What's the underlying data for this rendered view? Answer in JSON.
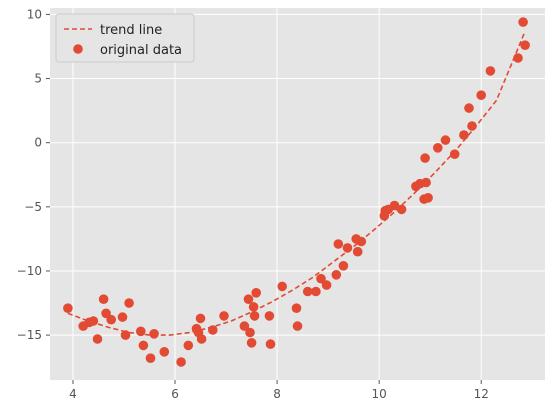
{
  "chart_data": {
    "type": "scatter",
    "title": "",
    "xlabel": "",
    "ylabel": "",
    "xlim": [
      3.55,
      13.25
    ],
    "ylim": [
      -18.5,
      10.5
    ],
    "grid": true,
    "legend_position": "top-left",
    "x_ticks": [
      4,
      6,
      8,
      10,
      12
    ],
    "y_ticks": [
      -15,
      -10,
      -5,
      0,
      5,
      10
    ],
    "series": [
      {
        "name": "trend line",
        "kind": "line",
        "style": "dashed",
        "color": "#E24A33",
        "x": [
          3.9,
          4.3,
          4.7,
          5.1,
          5.5,
          5.9,
          6.3,
          6.7,
          7.1,
          7.5,
          7.9,
          8.3,
          8.7,
          9.1,
          9.5,
          9.9,
          10.3,
          10.7,
          11.1,
          11.5,
          11.9,
          12.3,
          12.85
        ],
        "y": [
          -13.3,
          -13.9,
          -14.4,
          -14.8,
          -15.0,
          -15.0,
          -14.8,
          -14.4,
          -13.9,
          -13.2,
          -12.4,
          -11.5,
          -10.5,
          -9.3,
          -8.1,
          -6.8,
          -5.4,
          -3.9,
          -2.3,
          -0.6,
          1.3,
          3.3,
          8.6
        ]
      },
      {
        "name": "original data",
        "kind": "scatter",
        "color": "#E24A33",
        "x": [
          3.9,
          4.2,
          4.32,
          4.4,
          4.48,
          4.6,
          4.65,
          4.75,
          4.97,
          5.03,
          5.1,
          5.33,
          5.38,
          5.52,
          5.59,
          5.79,
          6.12,
          6.26,
          6.42,
          6.46,
          6.5,
          6.52,
          6.74,
          6.96,
          7.36,
          7.44,
          7.47,
          7.5,
          7.54,
          7.56,
          7.59,
          7.85,
          7.87,
          8.1,
          8.38,
          8.4,
          8.6,
          8.76,
          8.86,
          8.97,
          9.16,
          9.2,
          9.3,
          9.38,
          9.55,
          9.58,
          9.65,
          10.1,
          10.12,
          10.18,
          10.3,
          10.44,
          10.72,
          10.8,
          10.88,
          10.9,
          10.92,
          10.96,
          11.15,
          11.3,
          11.48,
          11.66,
          11.76,
          11.82,
          12.0,
          12.18,
          12.72,
          12.82,
          12.86
        ],
        "y": [
          -12.9,
          -14.3,
          -14.0,
          -13.9,
          -15.3,
          -12.2,
          -13.3,
          -13.8,
          -13.6,
          -15.0,
          -12.5,
          -14.7,
          -15.8,
          -16.8,
          -14.9,
          -16.3,
          -17.1,
          -15.8,
          -14.5,
          -14.8,
          -13.7,
          -15.3,
          -14.6,
          -13.5,
          -14.3,
          -12.2,
          -14.8,
          -15.6,
          -12.8,
          -13.5,
          -11.7,
          -13.5,
          -15.7,
          -11.2,
          -12.9,
          -14.3,
          -11.6,
          -11.6,
          -10.6,
          -11.1,
          -10.3,
          -7.9,
          -9.6,
          -8.2,
          -7.5,
          -8.5,
          -7.7,
          -5.7,
          -5.3,
          -5.2,
          -4.9,
          -5.2,
          -3.4,
          -3.2,
          -4.4,
          -1.2,
          -3.1,
          -4.3,
          -0.4,
          0.2,
          -0.9,
          0.6,
          2.7,
          1.3,
          3.7,
          5.6,
          6.6,
          9.4,
          7.6
        ]
      }
    ]
  }
}
